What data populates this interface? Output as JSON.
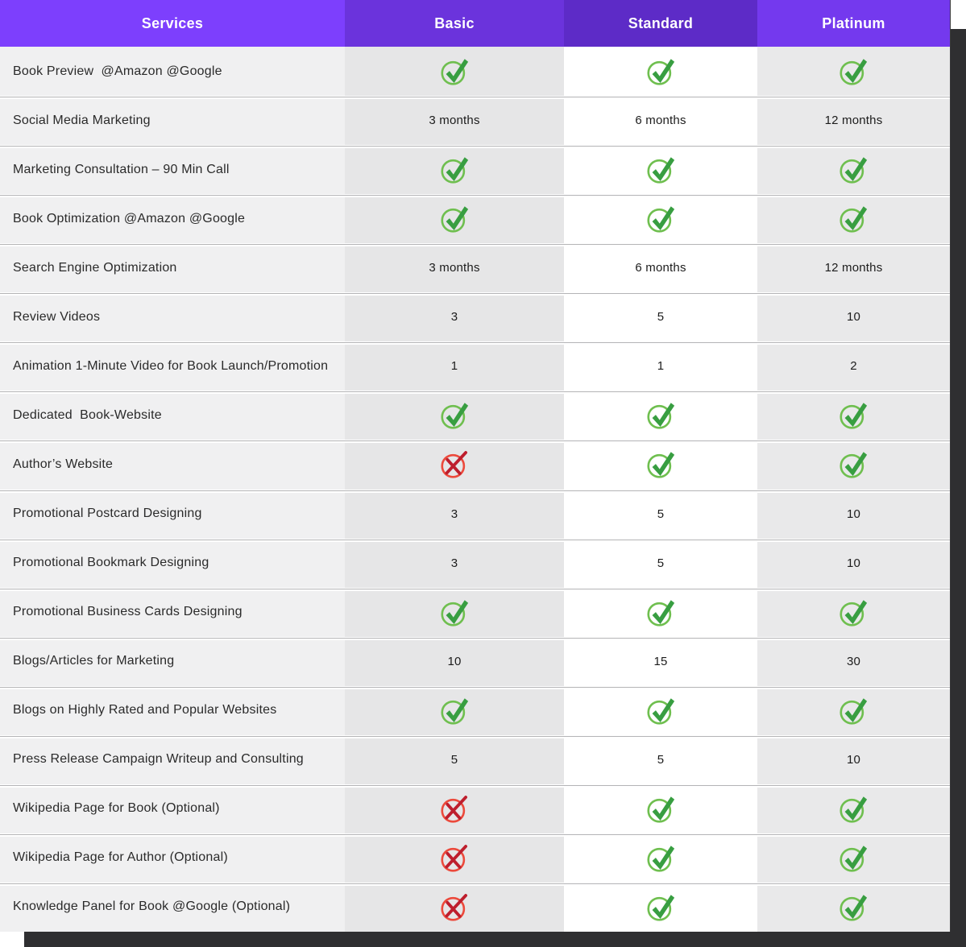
{
  "page": {
    "background": "#ffffff",
    "shadow_color": "#2f2f31"
  },
  "table": {
    "columns": [
      {
        "id": "services",
        "label": "Services",
        "header_bg": "#7d3ffd",
        "cell_bg": "#f0f0f1"
      },
      {
        "id": "basic",
        "label": "Basic",
        "header_bg": "#6b33dc",
        "cell_bg": "#e6e6e7"
      },
      {
        "id": "standard",
        "label": "Standard",
        "header_bg": "#5d2bc7",
        "cell_bg": "#ffffff"
      },
      {
        "id": "platinum",
        "label": "Platinum",
        "header_bg": "#7439ee",
        "cell_bg": "#e9e9ea"
      }
    ],
    "rows": [
      {
        "service": "Book Preview  @Amazon @Google",
        "basic": "check",
        "standard": "check",
        "platinum": "check"
      },
      {
        "service": "Social Media Marketing",
        "basic": "3 months",
        "standard": "6 months",
        "platinum": "12 months"
      },
      {
        "service": "Marketing Consultation – 90 Min Call",
        "basic": "check",
        "standard": "check",
        "platinum": "check"
      },
      {
        "service": "Book Optimization @Amazon @Google",
        "basic": "check",
        "standard": "check",
        "platinum": "check"
      },
      {
        "service": "Search Engine Optimization",
        "basic": "3 months",
        "standard": "6 months",
        "platinum": "12 months"
      },
      {
        "service": "Review Videos",
        "basic": "3",
        "standard": "5",
        "platinum": "10"
      },
      {
        "service": "Animation 1-Minute Video for Book Launch/Promotion",
        "basic": "1",
        "standard": "1",
        "platinum": "2"
      },
      {
        "service": "Dedicated  Book-Website",
        "basic": "check",
        "standard": "check",
        "platinum": "check"
      },
      {
        "service": "Author’s Website",
        "basic": "cross",
        "standard": "check",
        "platinum": "check"
      },
      {
        "service": "Promotional Postcard Designing",
        "basic": "3",
        "standard": "5",
        "platinum": "10"
      },
      {
        "service": "Promotional Bookmark Designing",
        "basic": "3",
        "standard": "5",
        "platinum": "10"
      },
      {
        "service": "Promotional Business Cards Designing",
        "basic": "check",
        "standard": "check",
        "platinum": "check"
      },
      {
        "service": "Blogs/Articles for Marketing",
        "basic": "10",
        "standard": "15",
        "platinum": "30"
      },
      {
        "service": "Blogs on Highly Rated and Popular Websites",
        "basic": "check",
        "standard": "check",
        "platinum": "check"
      },
      {
        "service": "Press Release Campaign Writeup and Consulting",
        "basic": "5",
        "standard": "5",
        "platinum": "10"
      },
      {
        "service": "Wikipedia Page for Book (Optional)",
        "basic": "cross",
        "standard": "check",
        "platinum": "check"
      },
      {
        "service": "Wikipedia Page for Author (Optional)",
        "basic": "cross",
        "standard": "check",
        "platinum": "check"
      },
      {
        "service": "Knowledge Panel for Book @Google (Optional)",
        "basic": "cross",
        "standard": "check",
        "platinum": "check"
      }
    ]
  },
  "icons": {
    "check": {
      "name": "check-icon",
      "ring": "#6fbf4f",
      "mark": "#389e41"
    },
    "cross": {
      "name": "cross-icon",
      "ring": "#ec4a3c",
      "mark": "#be1e2d"
    }
  }
}
